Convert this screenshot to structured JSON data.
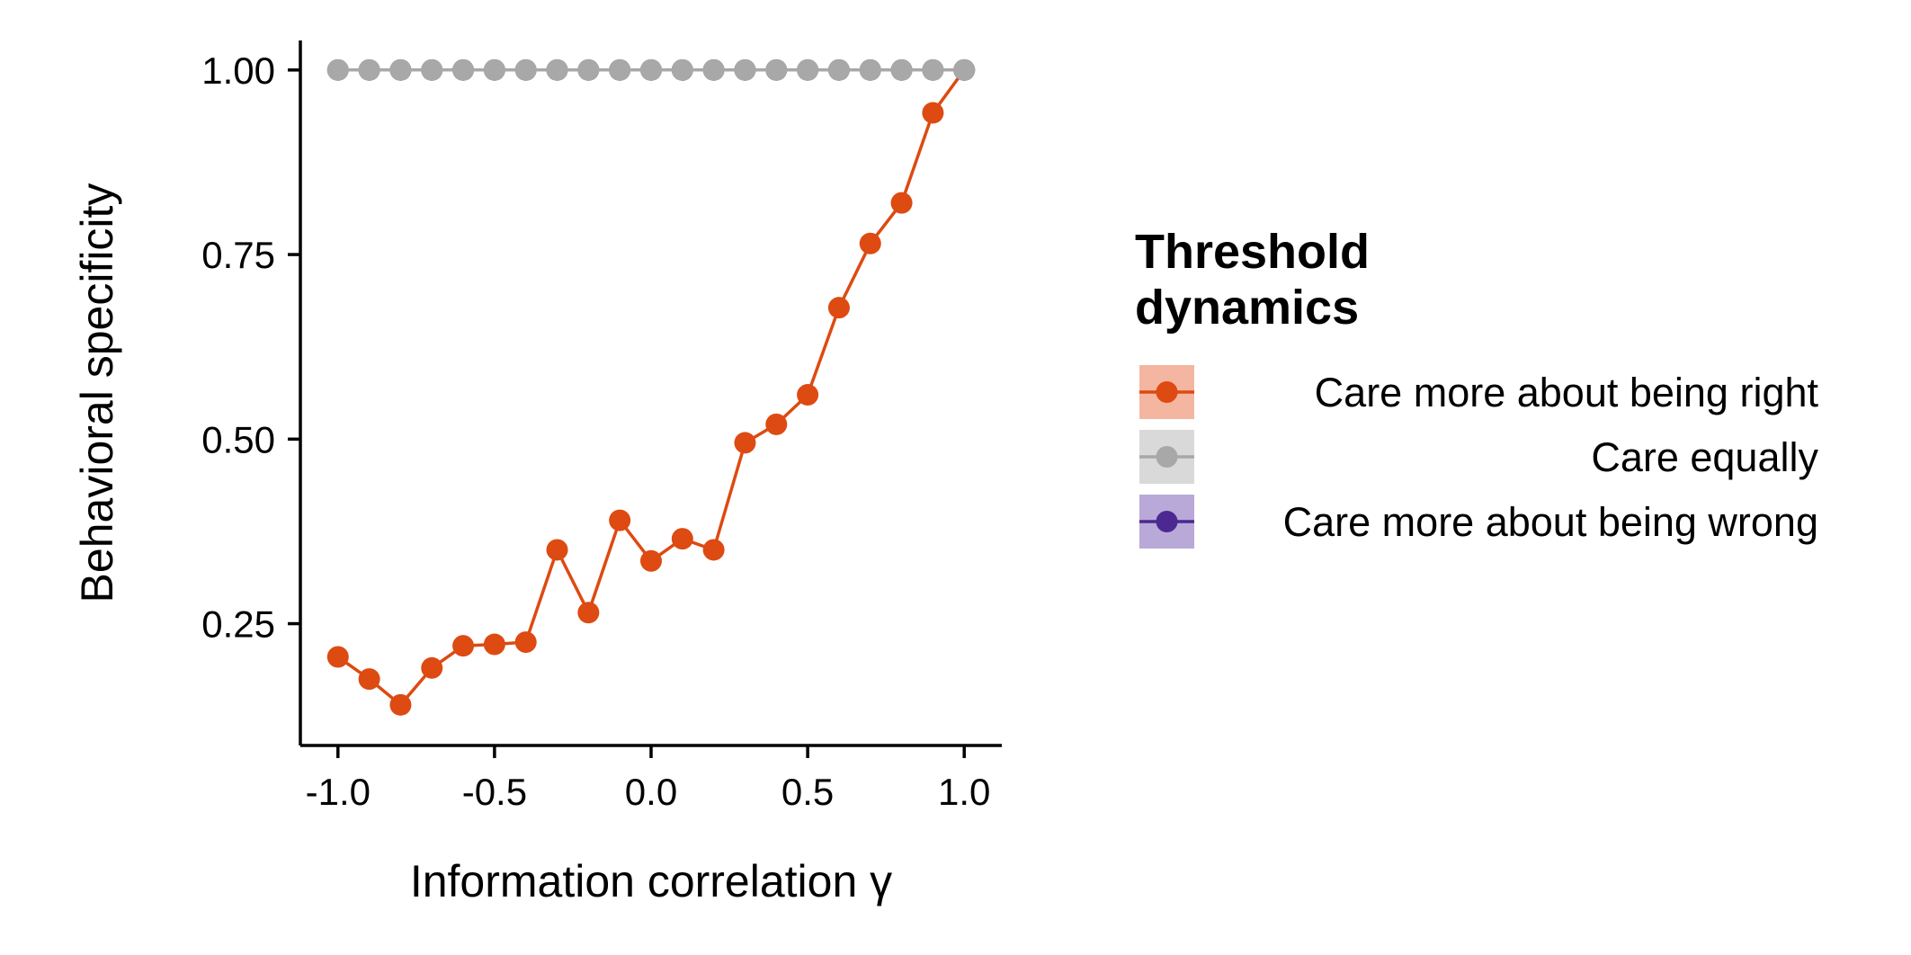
{
  "chart_data": {
    "type": "line",
    "xlabel": "Information correlation γ",
    "ylabel": "Behavioral specificity",
    "xlim": [
      -1.12,
      1.12
    ],
    "ylim": [
      0.085,
      1.04
    ],
    "x_ticks": [
      -1.0,
      -0.5,
      0.0,
      0.5,
      1.0
    ],
    "x_tick_labels": [
      "-1.0",
      "-0.5",
      "0.0",
      "0.5",
      "1.0"
    ],
    "y_ticks": [
      0.25,
      0.5,
      0.75,
      1.0
    ],
    "y_tick_labels": [
      "0.25",
      "0.50",
      "0.75",
      "1.00"
    ],
    "grid": false,
    "legend": {
      "title_lines": [
        "Threshold",
        "dynamics"
      ],
      "placement": "right"
    },
    "series": [
      {
        "name": "Care more about being right",
        "color": "#dd4a12",
        "ribbon_color": "#f4b6a0",
        "x": [
          -1.0,
          -0.9,
          -0.8,
          -0.7,
          -0.6,
          -0.5,
          -0.4,
          -0.3,
          -0.2,
          -0.1,
          0.0,
          0.1,
          0.2,
          0.3,
          0.4,
          0.5,
          0.6,
          0.7,
          0.8,
          0.9,
          1.0
        ],
        "y": [
          0.205,
          0.175,
          0.14,
          0.19,
          0.22,
          0.222,
          0.225,
          0.35,
          0.265,
          0.39,
          0.335,
          0.365,
          0.35,
          0.495,
          0.52,
          0.56,
          0.678,
          0.765,
          0.82,
          0.942,
          1.0
        ]
      },
      {
        "name": "Care equally",
        "color": "#a8a8a8",
        "ribbon_color": "#d9d9d9",
        "x": [
          -1.0,
          -0.9,
          -0.8,
          -0.7,
          -0.6,
          -0.5,
          -0.4,
          -0.3,
          -0.2,
          -0.1,
          0.0,
          0.1,
          0.2,
          0.3,
          0.4,
          0.5,
          0.6,
          0.7,
          0.8,
          0.9,
          1.0
        ],
        "y": [
          1.0,
          1.0,
          1.0,
          1.0,
          1.0,
          1.0,
          1.0,
          1.0,
          1.0,
          1.0,
          1.0,
          1.0,
          1.0,
          1.0,
          1.0,
          1.0,
          1.0,
          1.0,
          1.0,
          1.0,
          1.0
        ]
      },
      {
        "name": "Care more about being wrong",
        "color": "#4b2991",
        "ribbon_color": "#b9a9d8",
        "x": [
          -1.0,
          -0.9,
          -0.8,
          -0.7,
          -0.6,
          -0.5,
          -0.4,
          -0.3,
          -0.2,
          -0.1,
          0.0,
          0.1,
          0.2,
          0.3,
          0.4,
          0.5,
          0.6,
          0.7,
          0.8,
          0.9,
          1.0
        ],
        "y": [
          1.0,
          1.0,
          1.0,
          1.0,
          1.0,
          1.0,
          1.0,
          1.0,
          1.0,
          1.0,
          1.0,
          1.0,
          1.0,
          1.0,
          1.0,
          1.0,
          1.0,
          1.0,
          1.0,
          1.0,
          1.0
        ]
      }
    ]
  }
}
